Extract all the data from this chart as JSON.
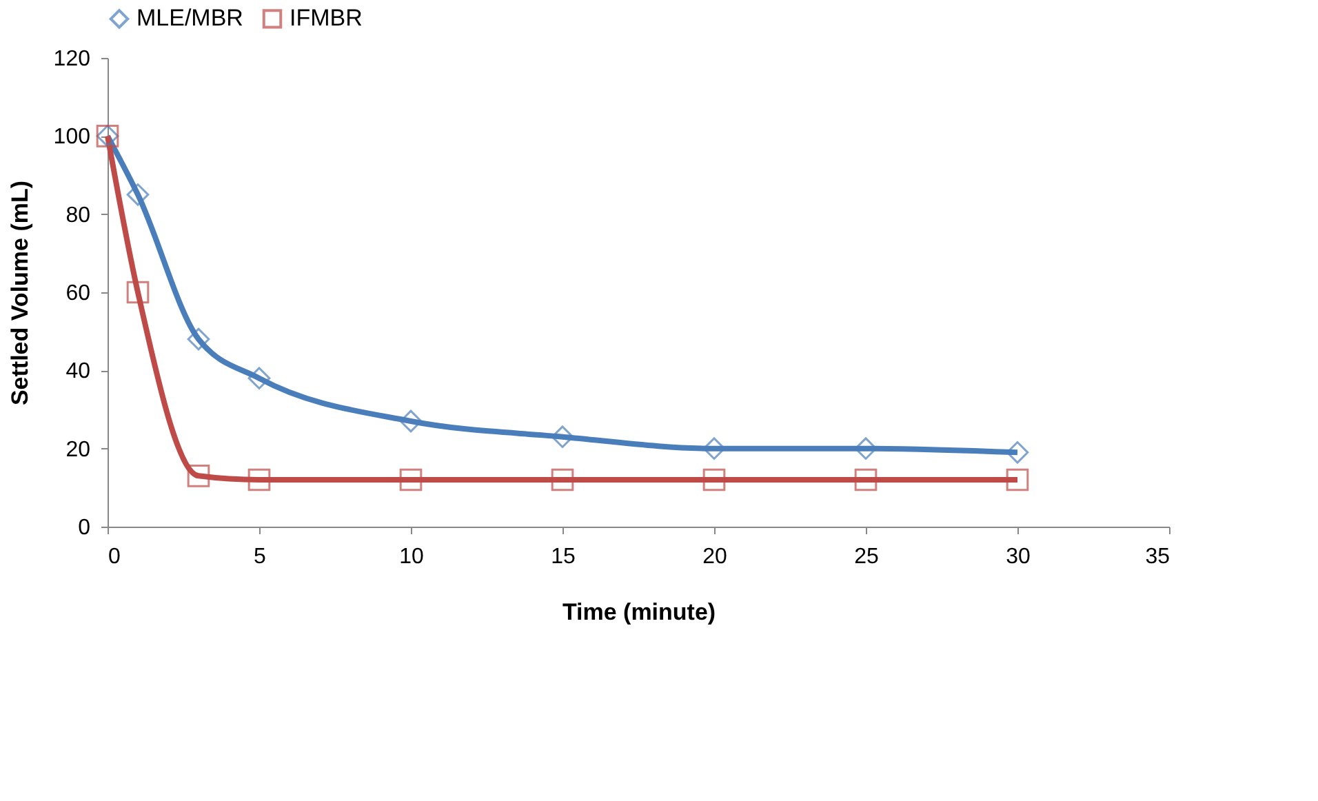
{
  "chart_data": {
    "type": "line",
    "xlabel": "Time (minute)",
    "ylabel": "Settled  Volume (mL)",
    "x": [
      0,
      1,
      3,
      5,
      10,
      15,
      20,
      25,
      30
    ],
    "series": [
      {
        "name": "MLE/MBR",
        "color": "#4a7ebb",
        "marker": "diamond",
        "values": [
          100,
          85,
          48,
          38,
          27,
          23,
          20,
          20,
          19
        ]
      },
      {
        "name": "IFMBR",
        "color": "#be4b48",
        "marker": "square",
        "values": [
          100,
          60,
          13,
          12,
          12,
          12,
          12,
          12,
          12
        ]
      }
    ],
    "xlim": [
      0,
      35
    ],
    "xticks": [
      0,
      5,
      10,
      15,
      20,
      25,
      30,
      35
    ],
    "ylim": [
      0,
      120
    ],
    "yticks": [
      0,
      20,
      40,
      60,
      80,
      100,
      120
    ],
    "grid": false,
    "legend": "top",
    "line_style": "solid"
  }
}
